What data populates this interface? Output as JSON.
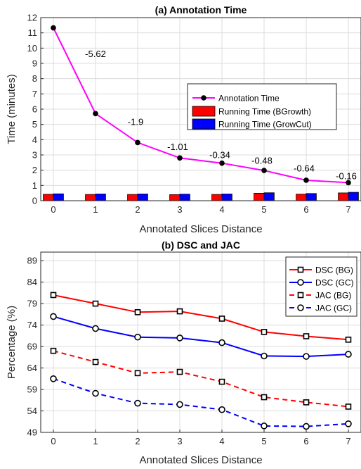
{
  "chart_data": [
    {
      "type": "line",
      "title": "(a) Annotation Time",
      "xlabel": "Annotated Slices Distance",
      "ylabel": "Time (minutes)",
      "x": [
        0,
        1,
        2,
        3,
        4,
        5,
        6,
        7
      ],
      "xlim": [
        -0.3,
        7.3
      ],
      "ylim": [
        0,
        12
      ],
      "yticks": [
        0,
        1,
        2,
        3,
        4,
        5,
        6,
        7,
        8,
        9,
        10,
        11,
        12
      ],
      "grid": true,
      "legend_position": "center-right",
      "series": [
        {
          "name": "Annotation Time",
          "type": "line",
          "color": "#ff00ff",
          "marker": "filled-circle",
          "marker_color": "#000000",
          "values": [
            11.33,
            5.71,
            3.81,
            2.8,
            2.46,
            1.98,
            1.34,
            1.18
          ]
        },
        {
          "name": "Running Time (BGrowth)",
          "type": "bar",
          "color": "#ff0000",
          "values": [
            0.42,
            0.41,
            0.41,
            0.4,
            0.41,
            0.49,
            0.43,
            0.51
          ]
        },
        {
          "name": "Running Time (GrowCut)",
          "type": "bar",
          "color": "#0000ff",
          "values": [
            0.45,
            0.44,
            0.44,
            0.43,
            0.44,
            0.52,
            0.47,
            0.55
          ]
        }
      ],
      "annotations": [
        {
          "text": "-5.62",
          "x": 1.0,
          "y": 9.6
        },
        {
          "text": "-1.9",
          "x": 1.95,
          "y": 5.15
        },
        {
          "text": "-1.01",
          "x": 2.95,
          "y": 3.5
        },
        {
          "text": "-0.34",
          "x": 3.95,
          "y": 2.98
        },
        {
          "text": "-0.48",
          "x": 4.95,
          "y": 2.6
        },
        {
          "text": "-0.64",
          "x": 5.95,
          "y": 2.1
        },
        {
          "text": "-0.16",
          "x": 6.95,
          "y": 1.6
        }
      ]
    },
    {
      "type": "line",
      "title": "(b) DSC and JAC",
      "xlabel": "Annotated Slices Distance",
      "ylabel": "Percentage (%)",
      "x": [
        0,
        1,
        2,
        3,
        4,
        5,
        6,
        7
      ],
      "xlim": [
        -0.3,
        7.3
      ],
      "ylim": [
        49,
        91
      ],
      "yticks": [
        49,
        54,
        59,
        64,
        69,
        74,
        79,
        84,
        89
      ],
      "grid": true,
      "legend_position": "top-right",
      "series": [
        {
          "name": "DSC (BG)",
          "color": "#ff0000",
          "dash": "solid",
          "marker": "square",
          "values": [
            81.0,
            79.0,
            77.0,
            77.2,
            75.5,
            72.4,
            71.4,
            70.6
          ]
        },
        {
          "name": "DSC (GC)",
          "color": "#0000ff",
          "dash": "solid",
          "marker": "circle",
          "values": [
            76.0,
            73.2,
            71.2,
            71.0,
            69.9,
            66.8,
            66.7,
            67.2
          ]
        },
        {
          "name": "JAC (BG)",
          "color": "#ff0000",
          "dash": "dashed",
          "marker": "square",
          "values": [
            68.0,
            65.4,
            62.8,
            63.1,
            60.8,
            57.2,
            56.0,
            55.0
          ]
        },
        {
          "name": "JAC (GC)",
          "color": "#0000ff",
          "dash": "dashed",
          "marker": "circle",
          "values": [
            61.5,
            58.1,
            55.8,
            55.5,
            54.3,
            50.5,
            50.4,
            51.0
          ]
        }
      ]
    }
  ]
}
